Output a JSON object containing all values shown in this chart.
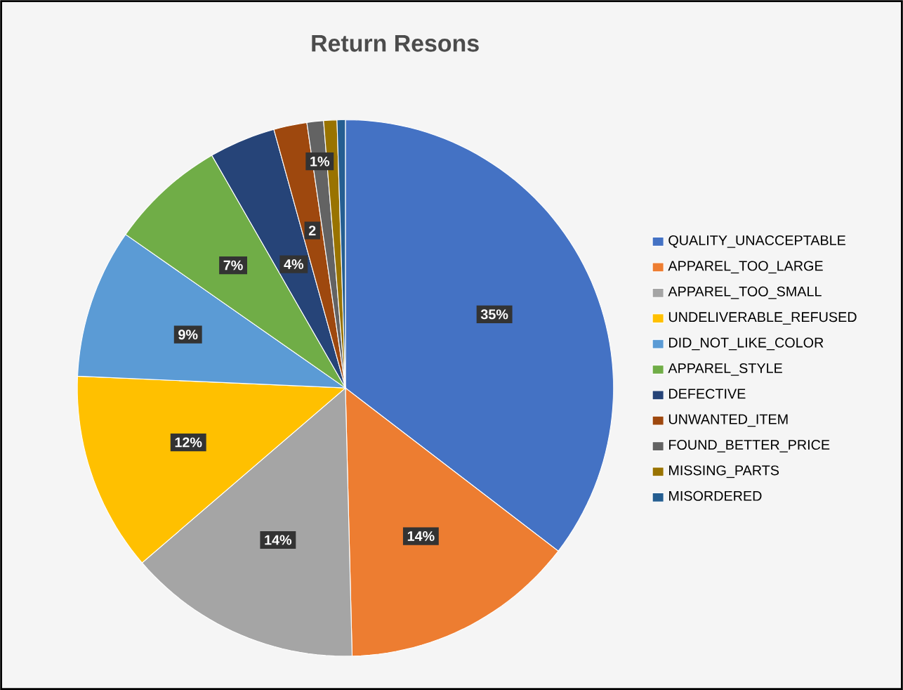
{
  "chart_data": {
    "type": "pie",
    "title": "Return Resons",
    "categories": [
      "QUALITY_UNACCEPTABLE",
      "APPAREL_TOO_LARGE",
      "APPAREL_TOO_SMALL",
      "UNDELIVERABLE_REFUSED",
      "DID_NOT_LIKE_COLOR",
      "APPAREL_STYLE",
      "DEFECTIVE",
      "UNWANTED_ITEM",
      "FOUND_BETTER_PRICE",
      "MISSING_PARTS",
      "MISORDERED"
    ],
    "values": [
      35.4,
      14.2,
      14.1,
      12,
      9,
      7,
      4,
      2,
      1,
      0.8,
      0.5
    ],
    "value_labels": [
      "35%",
      "14%",
      "14%",
      "12%",
      "9%",
      "7%",
      "4%",
      "2",
      "1%",
      null,
      null
    ],
    "colors": [
      "#4472c4",
      "#ed7d31",
      "#a5a5a5",
      "#ffc000",
      "#5b9bd5",
      "#70ad47",
      "#264478",
      "#9e480e",
      "#636363",
      "#997300",
      "#255e91"
    ],
    "legend": "right"
  }
}
